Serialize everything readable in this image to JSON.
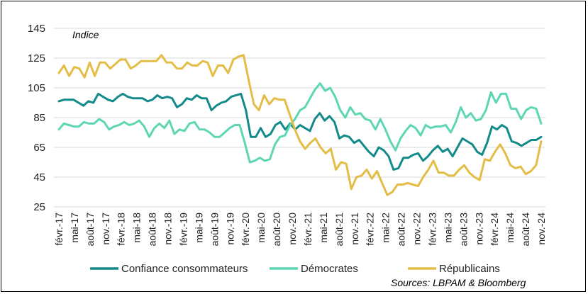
{
  "chart_data": {
    "type": "line",
    "ylabel": "Indice",
    "ylim": [
      25,
      145
    ],
    "yticks": [
      25,
      45,
      65,
      85,
      105,
      125,
      145
    ],
    "tick_labels": [
      "févr.-17",
      "mai-17",
      "août-17",
      "nov.-17",
      "févr.-18",
      "mai-18",
      "août-18",
      "nov.-18",
      "févr.-19",
      "mai-19",
      "août-19",
      "nov.-19",
      "févr.-20",
      "mai-20",
      "août-20",
      "nov.-20",
      "févr.-21",
      "mai-21",
      "août-21",
      "nov.-21",
      "févr.-22",
      "mai-22",
      "août-22",
      "nov.-22",
      "févr.-23",
      "mai-23",
      "août-23",
      "nov.-23",
      "févr.-24",
      "mai-24",
      "août-24",
      "nov.-24"
    ],
    "source": "Sources: LBPAM & Bloomberg",
    "series": [
      {
        "name": "Confiance consommateurs",
        "color": "#138a8a",
        "values": [
          96,
          97,
          97,
          97,
          95,
          93,
          96,
          95,
          101,
          99,
          97,
          96,
          99,
          101,
          99,
          98,
          98,
          98,
          96,
          97,
          100,
          98,
          99,
          98,
          92,
          94,
          98,
          97,
          100,
          98,
          98,
          90,
          93,
          95,
          96,
          99,
          100,
          101,
          90,
          72,
          72,
          78,
          72,
          74,
          80,
          82,
          77,
          81,
          77,
          80,
          78,
          76,
          84,
          88,
          83,
          86,
          82,
          71,
          73,
          72,
          68,
          70,
          66,
          62,
          59,
          65,
          63,
          59,
          50,
          51,
          58,
          58,
          60,
          61,
          56,
          59,
          63,
          66,
          62,
          64,
          59,
          65,
          71,
          69,
          67,
          62,
          60,
          68,
          79,
          77,
          80,
          78,
          69,
          68,
          66,
          68,
          70,
          70,
          72
        ]
      },
      {
        "name": "Démocrates",
        "color": "#5ed6b4",
        "values": [
          77,
          81,
          80,
          79,
          79,
          82,
          81,
          81,
          84,
          82,
          77,
          79,
          80,
          82,
          80,
          81,
          83,
          79,
          72,
          78,
          81,
          78,
          83,
          74,
          77,
          76,
          81,
          82,
          77,
          77,
          75,
          72,
          72,
          75,
          78,
          80,
          80,
          68,
          55,
          56,
          58,
          56,
          57,
          67,
          72,
          73,
          80,
          84,
          90,
          92,
          98,
          104,
          108,
          103,
          105,
          99,
          90,
          85,
          92,
          87,
          88,
          84,
          83,
          77,
          84,
          77,
          69,
          63,
          71,
          76,
          80,
          78,
          73,
          80,
          78,
          79,
          79,
          80,
          75,
          82,
          92,
          85,
          88,
          83,
          84,
          90,
          102,
          95,
          101,
          101,
          91,
          91,
          84,
          90,
          92,
          91,
          81
        ]
      },
      {
        "name": "Républicains",
        "color": "#e3bd45",
        "values": [
          115,
          120,
          113,
          119,
          118,
          112,
          122,
          113,
          122,
          122,
          118,
          121,
          124,
          124,
          118,
          120,
          123,
          123,
          123,
          123,
          127,
          122,
          122,
          118,
          118,
          122,
          120,
          120,
          123,
          122,
          113,
          120,
          120,
          115,
          124,
          126,
          127,
          110,
          94,
          90,
          100,
          94,
          98,
          97,
          97,
          87,
          77,
          69,
          64,
          68,
          71,
          65,
          61,
          64,
          50,
          55,
          54,
          37,
          45,
          46,
          50,
          44,
          49,
          41,
          33,
          35,
          40,
          40,
          41,
          40,
          39,
          45,
          50,
          56,
          48,
          48,
          46,
          46,
          50,
          53,
          48,
          45,
          43,
          57,
          56,
          62,
          67,
          61,
          53,
          51,
          52,
          47,
          49,
          53,
          69
        ]
      }
    ]
  }
}
